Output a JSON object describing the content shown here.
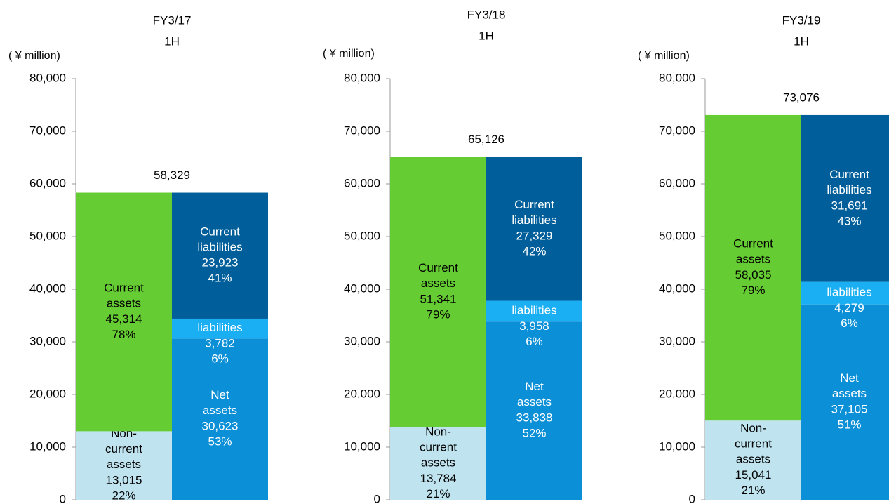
{
  "chart_data": [
    {
      "type": "bar",
      "stacked": true,
      "title": "FY3/17",
      "subtitle": "1H",
      "y_label": "( ¥ million)",
      "categories": [
        null,
        null
      ],
      "total": 58329,
      "total_label": "58,329",
      "ylim": [
        0,
        80000
      ],
      "yticks": [
        {
          "value": 0,
          "label": "0"
        },
        {
          "value": 10000,
          "label": "10,000"
        },
        {
          "value": 20000,
          "label": "20,000"
        },
        {
          "value": 30000,
          "label": "30,000"
        },
        {
          "value": 40000,
          "label": "40,000"
        },
        {
          "value": 50000,
          "label": "50,000"
        },
        {
          "value": 60000,
          "label": "60,000"
        },
        {
          "value": 70000,
          "label": "70,000"
        },
        {
          "value": 80000,
          "label": "80,000"
        }
      ],
      "series": [
        {
          "name": "Non-current assets",
          "color": "#bfe4f0",
          "values": [
            13015,
            null
          ],
          "value_labels": [
            "13,015",
            null
          ],
          "percent_labels": [
            "22%",
            null
          ]
        },
        {
          "name": "Current assets",
          "color": "#66cc33",
          "values": [
            45314,
            null
          ],
          "value_labels": [
            "45,314",
            null
          ],
          "percent_labels": [
            "78%",
            null
          ]
        },
        {
          "name": "Net assets",
          "color": "#0b8fd6",
          "values": [
            null,
            30623
          ],
          "value_labels": [
            null,
            "30,623"
          ],
          "percent_labels": [
            null,
            "53%"
          ]
        },
        {
          "name": "Non-current liabilities",
          "color": "#1aaef2",
          "values": [
            null,
            3782
          ],
          "value_labels": [
            null,
            "3,782"
          ],
          "percent_labels": [
            null,
            "6%"
          ]
        },
        {
          "name": "Current liabilities",
          "color": "#005f9a",
          "values": [
            null,
            23923
          ],
          "value_labels": [
            null,
            "23,923"
          ],
          "percent_labels": [
            null,
            "41%"
          ]
        }
      ]
    },
    {
      "type": "bar",
      "stacked": true,
      "title": "FY3/18",
      "subtitle": "1H",
      "y_label": "( ¥ million)",
      "categories": [
        null,
        null
      ],
      "total": 65126,
      "total_label": "65,126",
      "ylim": [
        0,
        80000
      ],
      "yticks": [
        {
          "value": 0,
          "label": "0"
        },
        {
          "value": 10000,
          "label": "10,000"
        },
        {
          "value": 20000,
          "label": "20,000"
        },
        {
          "value": 30000,
          "label": "30,000"
        },
        {
          "value": 40000,
          "label": "40,000"
        },
        {
          "value": 50000,
          "label": "50,000"
        },
        {
          "value": 60000,
          "label": "60,000"
        },
        {
          "value": 70000,
          "label": "70,000"
        },
        {
          "value": 80000,
          "label": "80,000"
        }
      ],
      "series": [
        {
          "name": "Non-current assets",
          "color": "#bfe4f0",
          "values": [
            13784,
            null
          ],
          "value_labels": [
            "13,784",
            null
          ],
          "percent_labels": [
            "21%",
            null
          ]
        },
        {
          "name": "Current assets",
          "color": "#66cc33",
          "values": [
            51341,
            null
          ],
          "value_labels": [
            "51,341",
            null
          ],
          "percent_labels": [
            "79%",
            null
          ]
        },
        {
          "name": "Net assets",
          "color": "#0b8fd6",
          "values": [
            null,
            33838
          ],
          "value_labels": [
            null,
            "33,838"
          ],
          "percent_labels": [
            null,
            "52%"
          ]
        },
        {
          "name": "Non-current liabilities",
          "color": "#1aaef2",
          "values": [
            null,
            3958
          ],
          "value_labels": [
            null,
            "3,958"
          ],
          "percent_labels": [
            null,
            "6%"
          ]
        },
        {
          "name": "Current liabilities",
          "color": "#005f9a",
          "values": [
            null,
            27329
          ],
          "value_labels": [
            null,
            "27,329"
          ],
          "percent_labels": [
            null,
            "42%"
          ]
        }
      ]
    },
    {
      "type": "bar",
      "stacked": true,
      "title": "FY3/19",
      "subtitle": "1H",
      "y_label": "( ¥ million)",
      "categories": [
        null,
        null
      ],
      "total": 73076,
      "total_label": "73,076",
      "ylim": [
        0,
        80000
      ],
      "yticks": [
        {
          "value": 0,
          "label": "0"
        },
        {
          "value": 10000,
          "label": "10,000"
        },
        {
          "value": 20000,
          "label": "20,000"
        },
        {
          "value": 30000,
          "label": "30,000"
        },
        {
          "value": 40000,
          "label": "40,000"
        },
        {
          "value": 50000,
          "label": "50,000"
        },
        {
          "value": 60000,
          "label": "60,000"
        },
        {
          "value": 70000,
          "label": "70,000"
        },
        {
          "value": 80000,
          "label": "80,000"
        }
      ],
      "series": [
        {
          "name": "Non-current assets",
          "color": "#bfe4f0",
          "values": [
            15041,
            null
          ],
          "value_labels": [
            "15,041",
            null
          ],
          "percent_labels": [
            "21%",
            null
          ]
        },
        {
          "name": "Current assets",
          "color": "#66cc33",
          "values": [
            58035,
            null
          ],
          "value_labels": [
            "58,035",
            null
          ],
          "percent_labels": [
            "79%",
            null
          ]
        },
        {
          "name": "Net assets",
          "color": "#0b8fd6",
          "values": [
            null,
            37105
          ],
          "value_labels": [
            null,
            "37,105"
          ],
          "percent_labels": [
            null,
            "51%"
          ]
        },
        {
          "name": "Non-current liabilities",
          "color": "#1aaef2",
          "values": [
            null,
            4279
          ],
          "value_labels": [
            null,
            "4,279"
          ],
          "percent_labels": [
            null,
            "6%"
          ]
        },
        {
          "name": "Current liabilities",
          "color": "#005f9a",
          "values": [
            null,
            31691
          ],
          "value_labels": [
            null,
            "31,691"
          ],
          "percent_labels": [
            null,
            "43%"
          ]
        }
      ]
    }
  ]
}
